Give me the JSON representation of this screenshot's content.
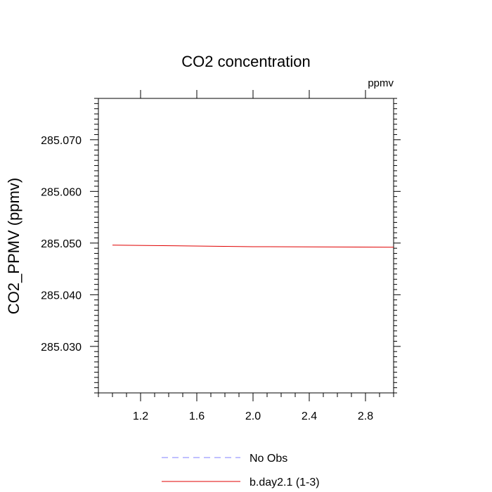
{
  "chart_data": {
    "type": "line",
    "title": "CO2 concentration",
    "units_label": "ppmv",
    "xlabel": "",
    "ylabel": "CO2_PPMV  (ppmv)",
    "xlim": [
      0.9,
      3.0
    ],
    "ylim": [
      285.021,
      285.078
    ],
    "x_ticks": [
      1.2,
      1.6,
      2.0,
      2.4,
      2.8
    ],
    "x_tick_labels": [
      "1.2",
      "1.6",
      "2.0",
      "2.4",
      "2.8"
    ],
    "y_ticks": [
      285.03,
      285.04,
      285.05,
      285.06,
      285.07
    ],
    "y_tick_labels": [
      "285.030",
      "285.040",
      "285.050",
      "285.060",
      "285.070"
    ],
    "series": [
      {
        "name": "No Obs",
        "color": "#8080ff",
        "dash": true,
        "x": [],
        "y": []
      },
      {
        "name": "b.day2.1 (1-3)",
        "color": "#e00000",
        "dash": false,
        "x": [
          1.0,
          2.0,
          3.0
        ],
        "y": [
          285.0496,
          285.0493,
          285.0492
        ]
      }
    ],
    "legend_position": "bottom-center",
    "grid": false
  }
}
